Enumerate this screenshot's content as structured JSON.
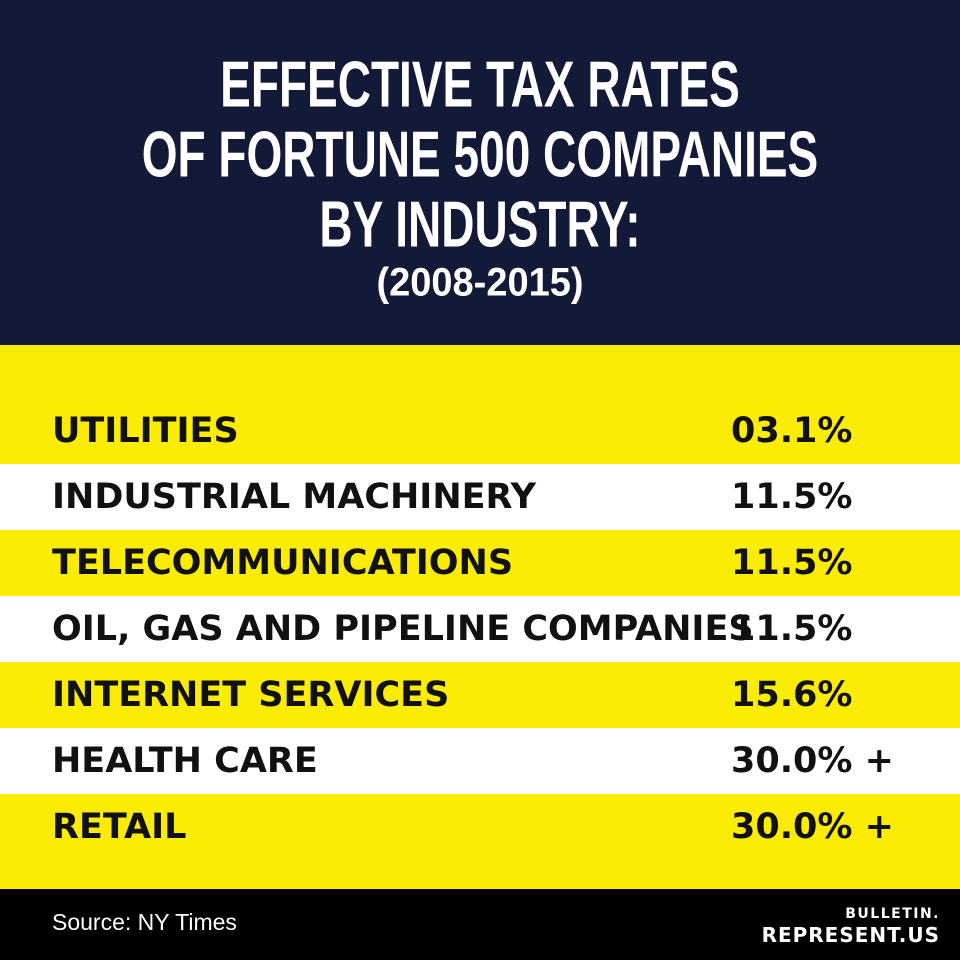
{
  "header": {
    "title_lines": [
      "EFFECTIVE TAX RATES",
      "OF FORTUNE 500 COMPANIES",
      "BY INDUSTRY:"
    ],
    "subtitle": "(2008-2015)"
  },
  "colors": {
    "header_bg": "#121a38",
    "row_yellow": "#fbec06",
    "row_white": "#ffffff",
    "footer_bg": "#000000"
  },
  "chart_data": {
    "type": "table",
    "title": "EFFECTIVE TAX RATES OF FORTUNE 500 COMPANIES BY INDUSTRY:",
    "subtitle": "(2008-2015)",
    "rows": [
      {
        "label": "UTILITIES",
        "value": "03.1%"
      },
      {
        "label": "INDUSTRIAL MACHINERY",
        "value": "11.5%"
      },
      {
        "label": "TELECOMMUNICATIONS",
        "value": "11.5%"
      },
      {
        "label": "OIL, GAS AND PIPELINE COMPANIES",
        "value": "11.5%"
      },
      {
        "label": "INTERNET SERVICES",
        "value": "15.6%"
      },
      {
        "label": "HEALTH CARE",
        "value": "30.0% +"
      },
      {
        "label": "RETAIL",
        "value": "30.0% +"
      }
    ]
  },
  "footer": {
    "source": "Source: NY Times",
    "brand_top": "BULLETIN.",
    "brand_bottom": "REPRESENT.US"
  }
}
